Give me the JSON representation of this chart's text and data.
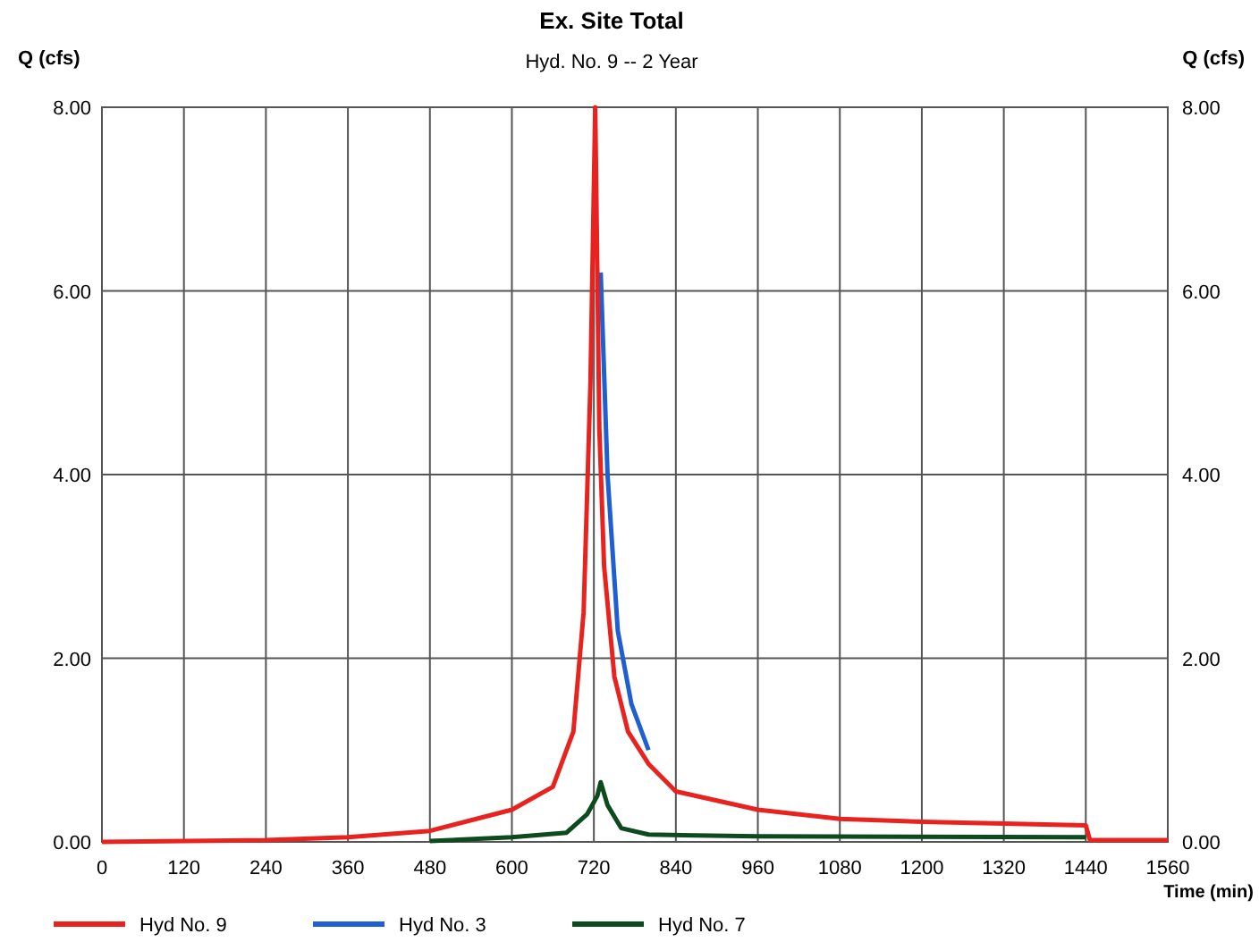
{
  "chart_data": {
    "type": "line",
    "title": "Ex. Site Total",
    "subtitle": "Hyd. No. 9 -- 2 Year",
    "xlabel": "Time (min)",
    "ylabel": "Q (cfs)",
    "y2label": "Q (cfs)",
    "xlim": [
      0,
      1560
    ],
    "xticks": [
      0,
      120,
      240,
      360,
      480,
      600,
      720,
      840,
      960,
      1080,
      1200,
      1320,
      1440,
      1560
    ],
    "ylim": [
      0,
      8
    ],
    "yticks": [
      {
        "value": 0,
        "label": "0.00"
      },
      {
        "value": 2,
        "label": "2.00"
      },
      {
        "value": 4,
        "label": "4.00"
      },
      {
        "value": 6,
        "label": "6.00"
      },
      {
        "value": 8,
        "label": "8.00"
      }
    ],
    "y2lim": [
      0,
      8
    ],
    "y2ticks": [
      {
        "value": 0,
        "label": "0.00"
      },
      {
        "value": 2,
        "label": "2.00"
      },
      {
        "value": 4,
        "label": "4.00"
      },
      {
        "value": 6,
        "label": "6.00"
      },
      {
        "value": 8,
        "label": "8.00"
      }
    ],
    "grid": true,
    "legend": "bottom",
    "marker": "none",
    "line_style": "solid",
    "series": [
      {
        "name": "Hyd No. 9",
        "color": "#e8231f",
        "x": [
          0,
          240,
          360,
          480,
          600,
          660,
          690,
          705,
          715,
          722,
          728,
          735,
          750,
          770,
          800,
          840,
          900,
          960,
          1080,
          1200,
          1320,
          1440,
          1446,
          1560
        ],
        "values": [
          0,
          0.02,
          0.05,
          0.12,
          0.35,
          0.6,
          1.2,
          2.5,
          5,
          8,
          4.5,
          3,
          1.8,
          1.2,
          0.85,
          0.55,
          0.45,
          0.35,
          0.25,
          0.22,
          0.2,
          0.18,
          0.02,
          0.02
        ]
      },
      {
        "name": "Hyd No. 3",
        "color": "#1f5fd0",
        "x": [
          730,
          740,
          755,
          775,
          800
        ],
        "values": [
          6.2,
          4,
          2.3,
          1.5,
          1
        ]
      },
      {
        "name": "Hyd No. 7",
        "color": "#0d4a1e",
        "x": [
          480,
          600,
          680,
          710,
          725,
          730,
          740,
          760,
          800,
          960,
          1440
        ],
        "values": [
          0.01,
          0.05,
          0.1,
          0.3,
          0.5,
          0.65,
          0.4,
          0.15,
          0.08,
          0.06,
          0.05
        ]
      }
    ]
  }
}
